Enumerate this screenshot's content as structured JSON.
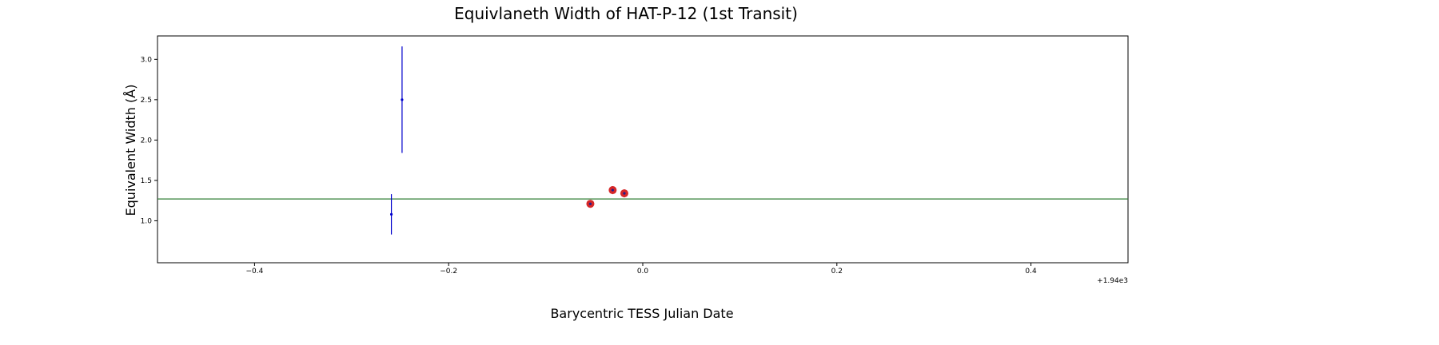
{
  "chart_data": {
    "type": "scatter",
    "title": "Equivlaneth Width of HAT-P-12 (1st Transit)",
    "xlabel": "Barycentric TESS Julian Date",
    "ylabel": "Equivalent Width (Å)",
    "x_offset_label": "+1.94e3",
    "xlim": [
      -0.5,
      0.5
    ],
    "ylim": [
      0.48,
      3.29
    ],
    "xticks": [
      -0.4,
      -0.2,
      0.0,
      0.2,
      0.4
    ],
    "xtick_labels": [
      "−0.4",
      "−0.2",
      "0.0",
      "0.2",
      "0.4"
    ],
    "yticks": [
      1.0,
      1.5,
      2.0,
      2.5,
      3.0
    ],
    "ytick_labels": [
      "1.0",
      "1.5",
      "2.0",
      "2.5",
      "3.0"
    ],
    "grid": false,
    "reference_line": {
      "y": 1.27,
      "color": "#2e7d32"
    },
    "series": [
      {
        "color": "#0000cc",
        "marker": "point-errorbar",
        "points": [
          {
            "x": -0.259,
            "y": 1.08,
            "yerr": 0.25
          },
          {
            "x": -0.248,
            "y": 2.5,
            "yerr": 0.66
          }
        ]
      },
      {
        "color": "#d62728",
        "marker": "circle-errorbar",
        "points": [
          {
            "x": -0.054,
            "y": 1.21,
            "yerr": 0.04
          },
          {
            "x": -0.031,
            "y": 1.38,
            "yerr": 0.05
          },
          {
            "x": -0.019,
            "y": 1.34,
            "yerr": 0.05
          }
        ]
      }
    ]
  }
}
